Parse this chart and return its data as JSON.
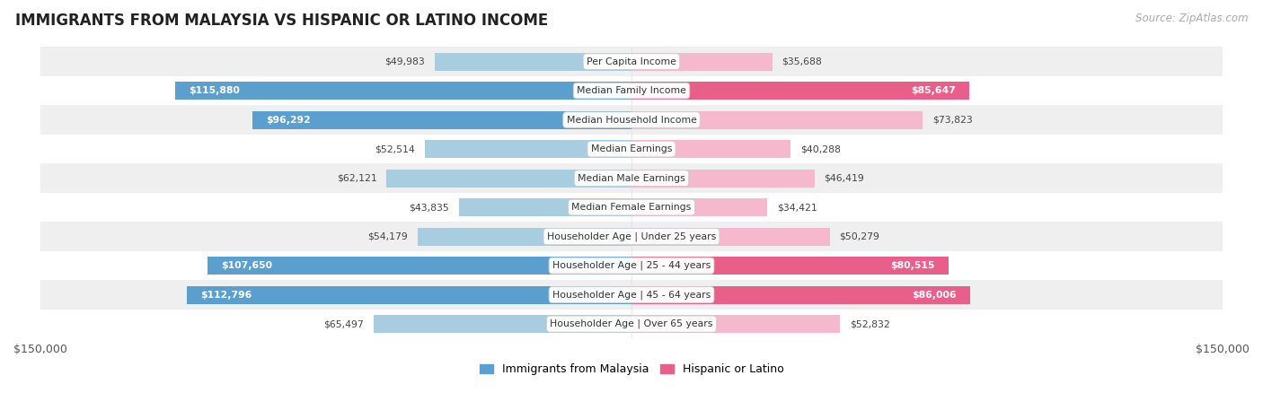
{
  "title": "IMMIGRANTS FROM MALAYSIA VS HISPANIC OR LATINO INCOME",
  "source": "Source: ZipAtlas.com",
  "categories": [
    "Per Capita Income",
    "Median Family Income",
    "Median Household Income",
    "Median Earnings",
    "Median Male Earnings",
    "Median Female Earnings",
    "Householder Age | Under 25 years",
    "Householder Age | 25 - 44 years",
    "Householder Age | 45 - 64 years",
    "Householder Age | Over 65 years"
  ],
  "malaysia_values": [
    49983,
    115880,
    96292,
    52514,
    62121,
    43835,
    54179,
    107650,
    112796,
    65497
  ],
  "hispanic_values": [
    35688,
    85647,
    73823,
    40288,
    46419,
    34421,
    50279,
    80515,
    86006,
    52832
  ],
  "malaysia_labels": [
    "$49,983",
    "$115,880",
    "$96,292",
    "$52,514",
    "$62,121",
    "$43,835",
    "$54,179",
    "$107,650",
    "$112,796",
    "$65,497"
  ],
  "hispanic_labels": [
    "$35,688",
    "$85,647",
    "$73,823",
    "$40,288",
    "$46,419",
    "$34,421",
    "$50,279",
    "$80,515",
    "$86,006",
    "$52,832"
  ],
  "malaysia_color_light": "#a8cce0",
  "malaysia_color_dark": "#5b9fce",
  "hispanic_color_light": "#f5b8cc",
  "hispanic_color_dark": "#e8608a",
  "bar_height": 0.62,
  "max_value": 150000,
  "row_bg_even": "#efefef",
  "row_bg_odd": "#ffffff",
  "inside_label_threshold": 75000,
  "legend_malaysia": "Immigrants from Malaysia",
  "legend_hispanic": "Hispanic or Latino"
}
